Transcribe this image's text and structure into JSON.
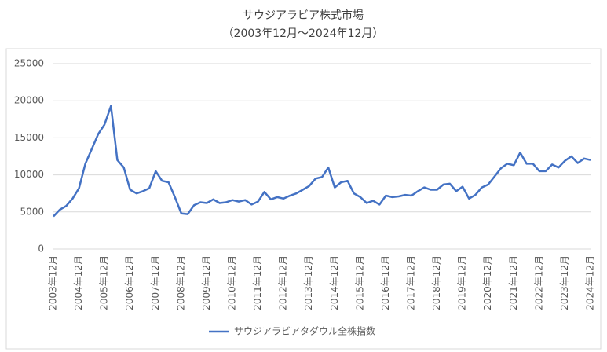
{
  "chart_data": {
    "type": "line",
    "title": "サウジアラビア株式市場",
    "subtitle": "（2003年12月～2024年12月）",
    "categories": [
      "2003年12月",
      null,
      null,
      null,
      "2004年12月",
      null,
      null,
      null,
      "2005年12月",
      null,
      null,
      null,
      "2006年12月",
      null,
      null,
      null,
      "2007年12月",
      null,
      null,
      null,
      "2008年12月",
      null,
      null,
      null,
      "2009年12月",
      null,
      null,
      null,
      "2010年12月",
      null,
      null,
      null,
      "2011年12月",
      null,
      null,
      null,
      "2012年12月",
      null,
      null,
      null,
      "2013年12月",
      null,
      null,
      null,
      "2014年12月",
      null,
      null,
      null,
      "2015年12月",
      null,
      null,
      null,
      "2016年12月",
      null,
      null,
      null,
      "2017年12月",
      null,
      null,
      null,
      "2018年12月",
      null,
      null,
      null,
      "2019年12月",
      null,
      null,
      null,
      "2020年12月",
      null,
      null,
      null,
      "2021年12月",
      null,
      null,
      null,
      "2022年12月",
      null,
      null,
      null,
      "2023年12月",
      null,
      null,
      null,
      "2024年12月"
    ],
    "series": [
      {
        "name": "サウジアラビアタダウル全株指数",
        "color": "#4472c4",
        "values": [
          4400,
          5300,
          5800,
          6800,
          8200,
          11500,
          13500,
          15500,
          16800,
          19300,
          12000,
          11000,
          8000,
          7500,
          7800,
          8200,
          10500,
          9200,
          9000,
          7000,
          4800,
          4700,
          5900,
          6300,
          6200,
          6700,
          6200,
          6300,
          6600,
          6400,
          6600,
          6000,
          6400,
          7700,
          6700,
          7000,
          6800,
          7200,
          7500,
          8000,
          8500,
          9500,
          9700,
          11000,
          8300,
          9000,
          9200,
          7500,
          7000,
          6200,
          6500,
          6000,
          7200,
          7000,
          7100,
          7300,
          7200,
          7800,
          8300,
          8000,
          8000,
          8700,
          8800,
          7800,
          8400,
          6800,
          7300,
          8300,
          8700,
          9800,
          10900,
          11500,
          11300,
          13000,
          11500,
          11500,
          10500,
          10500,
          11400,
          11000,
          11900,
          12500,
          11600,
          12200,
          12000
        ]
      }
    ],
    "ylim": [
      0,
      25000
    ],
    "yticks": [
      0,
      5000,
      10000,
      15000,
      20000,
      25000
    ],
    "grid": true,
    "legend": "bottom"
  }
}
